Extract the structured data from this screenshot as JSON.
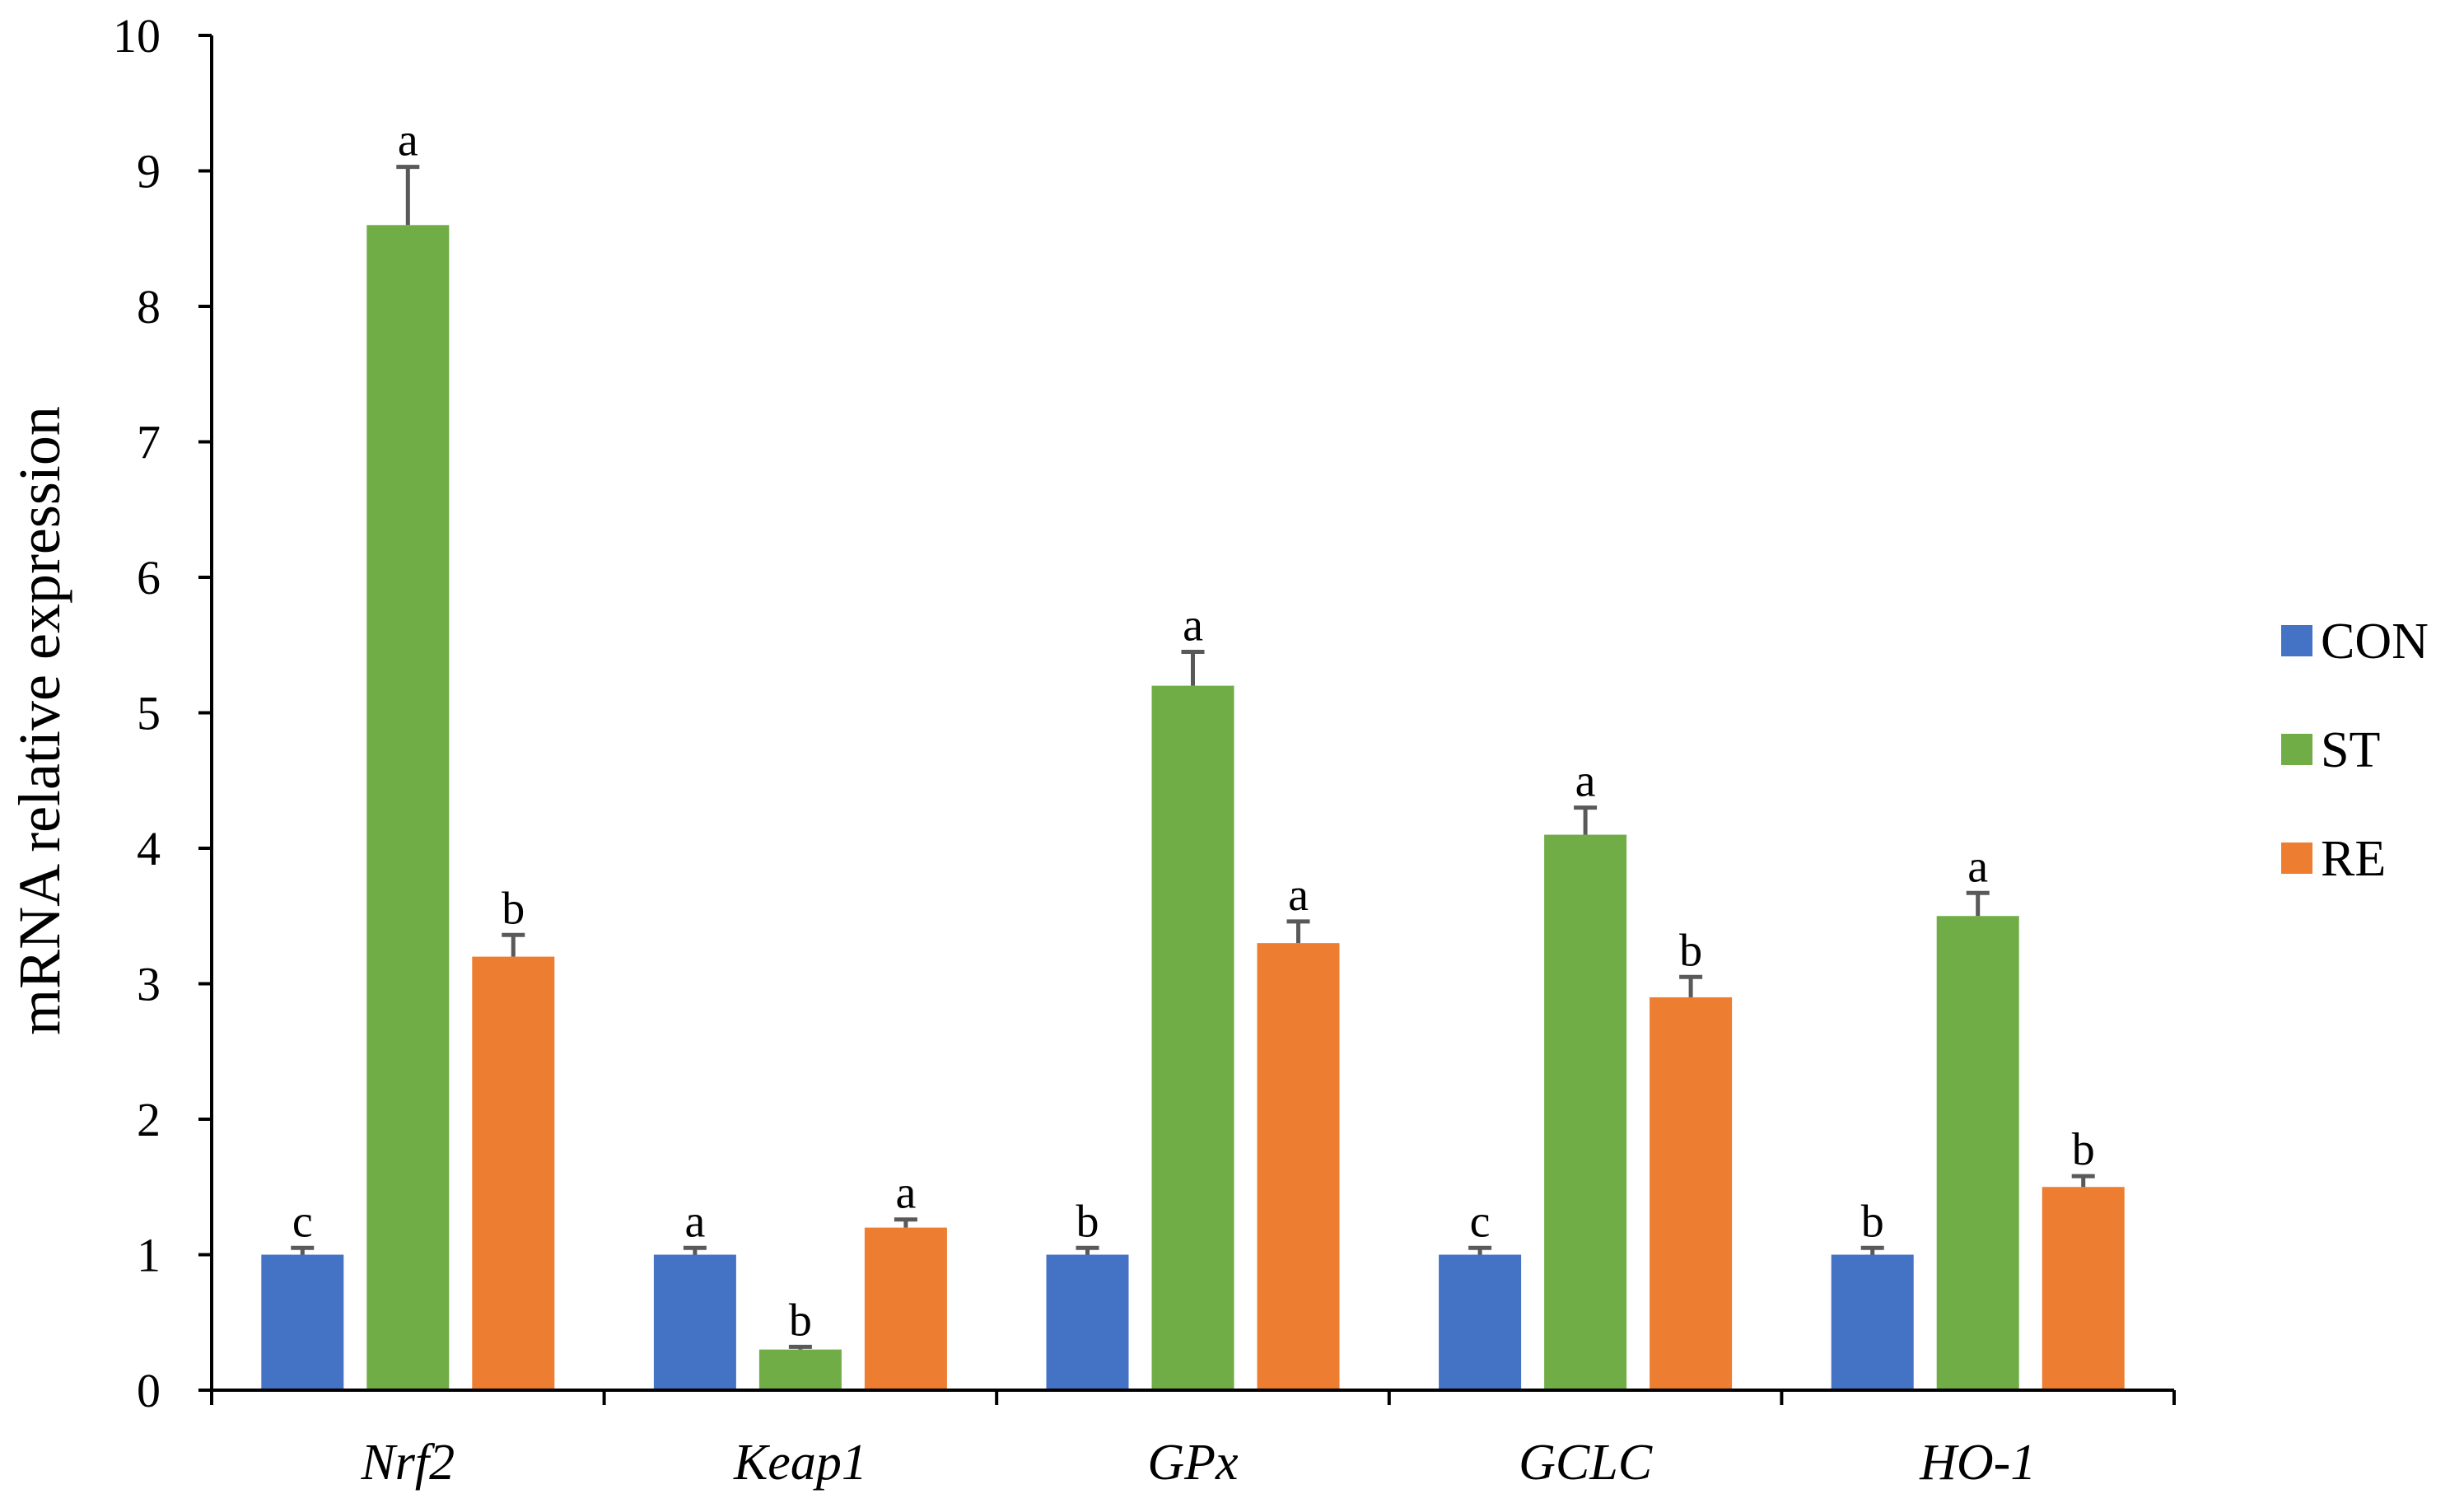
{
  "chart_data": {
    "type": "bar",
    "title": "",
    "xlabel": "",
    "ylabel": "mRNA relative expression",
    "ylim": [
      0,
      10
    ],
    "ytick_step": 1,
    "ytick_labels": [
      "0",
      "1",
      "2",
      "3",
      "4",
      "5",
      "6",
      "7",
      "8",
      "9",
      "10"
    ],
    "categories": [
      "Nrf2",
      "Keap1",
      "GPx",
      "GCLC",
      "HO-1"
    ],
    "legend_position": "right",
    "series": [
      {
        "name": "CON",
        "color": "#4472C4",
        "values": [
          1.0,
          1.0,
          1.0,
          1.0,
          1.0
        ],
        "errors": [
          0.05,
          0.05,
          0.05,
          0.05,
          0.05
        ],
        "letters": [
          "c",
          "a",
          "b",
          "c",
          "b"
        ]
      },
      {
        "name": "ST",
        "color": "#70AD47",
        "values": [
          8.6,
          0.3,
          5.2,
          4.1,
          3.5
        ],
        "errors": [
          0.43,
          0.02,
          0.25,
          0.2,
          0.17
        ],
        "letters": [
          "a",
          "b",
          "a",
          "a",
          "a"
        ]
      },
      {
        "name": "RE",
        "color": "#ED7D31",
        "values": [
          3.2,
          1.2,
          3.3,
          2.9,
          1.5
        ],
        "errors": [
          0.16,
          0.06,
          0.16,
          0.15,
          0.08
        ],
        "letters": [
          "b",
          "a",
          "a",
          "b",
          "b"
        ]
      }
    ],
    "error_bar_color": "#595959"
  }
}
